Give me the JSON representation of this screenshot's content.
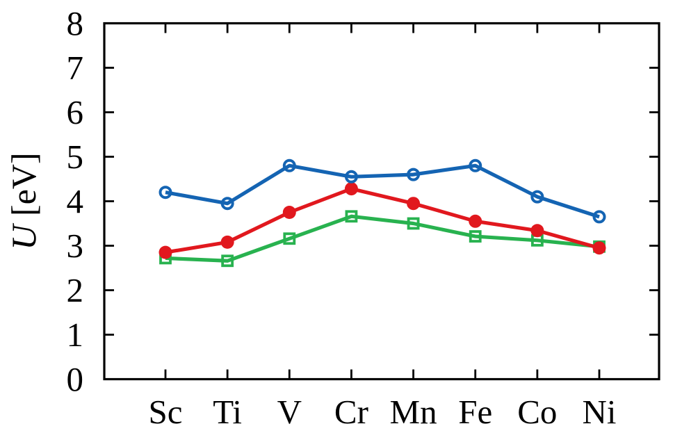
{
  "figure": {
    "background": "#ffffff",
    "description": "Line chart of U values for 3d transition metals"
  },
  "chart_data": {
    "type": "line",
    "title": "",
    "xlabel": "",
    "ylabel": "U [eV]",
    "ylabel_parts": {
      "symbol": "U",
      "unit": " [eV]"
    },
    "categories": [
      "Sc",
      "Ti",
      "V",
      "Cr",
      "Mn",
      "Fe",
      "Co",
      "Ni"
    ],
    "series": [
      {
        "name": "blue open circles",
        "marker": "open-circle",
        "color": "#1464b3",
        "values": [
          4.2,
          3.95,
          4.8,
          4.55,
          4.6,
          4.8,
          4.1,
          3.65
        ]
      },
      {
        "name": "red filled circles",
        "marker": "filled-circle",
        "color": "#e1181e",
        "values": [
          2.85,
          3.08,
          3.75,
          4.28,
          3.95,
          3.55,
          3.34,
          2.95
        ]
      },
      {
        "name": "green open squares",
        "marker": "open-square",
        "color": "#28b24f",
        "values": [
          2.72,
          2.66,
          3.16,
          3.66,
          3.5,
          3.21,
          3.12,
          2.98
        ]
      }
    ],
    "ylim": [
      0,
      8
    ],
    "yticks": [
      0,
      1,
      2,
      3,
      4,
      5,
      6,
      7,
      8
    ],
    "grid": false,
    "legend": "none",
    "frame": "box-with-mirrored-ticks",
    "axis_color": "#000000",
    "text_color": "#000000"
  }
}
